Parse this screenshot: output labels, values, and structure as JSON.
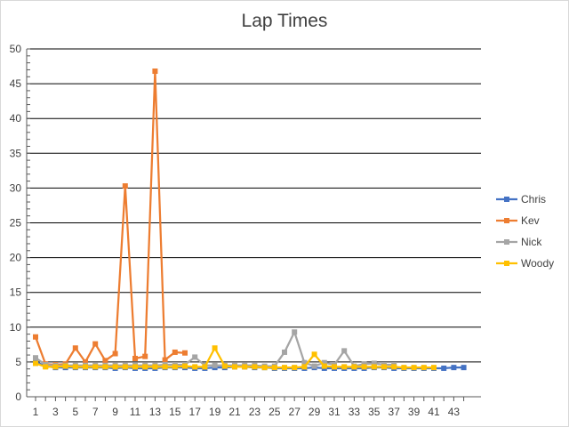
{
  "chart_data": {
    "type": "line",
    "title": "Lap Times",
    "xlabel": "",
    "ylabel": "",
    "ylim": [
      0,
      50
    ],
    "yticks": [
      0,
      5,
      10,
      15,
      20,
      25,
      30,
      35,
      40,
      45,
      50
    ],
    "xlim": [
      1,
      44
    ],
    "xtick_labels": [
      1,
      3,
      5,
      7,
      9,
      11,
      13,
      15,
      17,
      19,
      21,
      23,
      25,
      27,
      29,
      31,
      33,
      35,
      37,
      39,
      41,
      43
    ],
    "grid": "horizontal",
    "legend_position": "right",
    "series": [
      {
        "name": "Chris",
        "color": "#4472C4",
        "x": [
          1,
          2,
          3,
          4,
          5,
          6,
          7,
          8,
          9,
          10,
          11,
          12,
          13,
          14,
          15,
          16,
          17,
          18,
          19,
          20,
          21,
          22,
          23,
          24,
          25,
          26,
          27,
          28,
          29,
          30,
          31,
          32,
          33,
          34,
          35,
          36,
          37,
          38,
          39,
          40,
          41,
          42,
          43,
          44
        ],
        "values": [
          5.0,
          4.4,
          4.2,
          4.2,
          4.2,
          4.2,
          4.2,
          4.2,
          4.1,
          4.2,
          4.1,
          4.1,
          4.1,
          4.2,
          4.2,
          4.2,
          4.1,
          4.1,
          4.2,
          4.2,
          4.3,
          4.3,
          4.2,
          4.2,
          4.1,
          4.1,
          4.1,
          4.1,
          4.2,
          4.1,
          4.1,
          4.1,
          4.1,
          4.1,
          4.2,
          4.2,
          4.1,
          4.1,
          4.1,
          4.1,
          4.1,
          4.1,
          4.2,
          4.2
        ]
      },
      {
        "name": "Kev",
        "color": "#ED7D31",
        "x": [
          1,
          2,
          3,
          4,
          5,
          6,
          7,
          8,
          9,
          10,
          11,
          12,
          13,
          14,
          15,
          16
        ],
        "values": [
          8.6,
          4.7,
          4.6,
          4.7,
          7.0,
          5.0,
          7.6,
          5.2,
          6.2,
          30.3,
          5.5,
          5.8,
          46.8,
          5.3,
          6.4,
          6.3
        ]
      },
      {
        "name": "Nick",
        "color": "#A5A5A5",
        "x": [
          1,
          2,
          3,
          4,
          5,
          6,
          7,
          8,
          9,
          10,
          11,
          12,
          13,
          14,
          15,
          16,
          17,
          18,
          19,
          20,
          21,
          22,
          23,
          24,
          25,
          26,
          27,
          28,
          29,
          30,
          31,
          32,
          33,
          34,
          35,
          36,
          37
        ],
        "values": [
          5.6,
          4.6,
          4.5,
          4.5,
          4.5,
          4.5,
          4.5,
          4.5,
          4.5,
          4.5,
          4.5,
          4.5,
          4.5,
          4.6,
          4.6,
          4.6,
          5.7,
          4.5,
          4.5,
          4.5,
          4.5,
          4.5,
          4.5,
          4.4,
          4.4,
          6.4,
          9.3,
          4.9,
          4.4,
          4.9,
          4.6,
          6.6,
          4.4,
          4.7,
          4.8,
          4.6,
          4.6
        ]
      },
      {
        "name": "Woody",
        "color": "#FFC000",
        "x": [
          1,
          2,
          3,
          4,
          5,
          6,
          7,
          8,
          9,
          10,
          11,
          12,
          13,
          14,
          15,
          16,
          17,
          18,
          19,
          20,
          21,
          22,
          23,
          24,
          25,
          26,
          27,
          28,
          29,
          30,
          31,
          32,
          33,
          34,
          35,
          36,
          37,
          38,
          39,
          40,
          41
        ],
        "values": [
          4.8,
          4.3,
          4.3,
          4.4,
          4.3,
          4.3,
          4.3,
          4.3,
          4.3,
          4.3,
          4.3,
          4.3,
          4.3,
          4.3,
          4.3,
          4.4,
          4.3,
          4.3,
          7.0,
          4.4,
          4.3,
          4.3,
          4.3,
          4.2,
          4.2,
          4.2,
          4.2,
          4.3,
          6.1,
          4.4,
          4.3,
          4.3,
          4.3,
          4.3,
          4.3,
          4.3,
          4.3,
          4.2,
          4.2,
          4.2,
          4.2
        ]
      }
    ]
  }
}
